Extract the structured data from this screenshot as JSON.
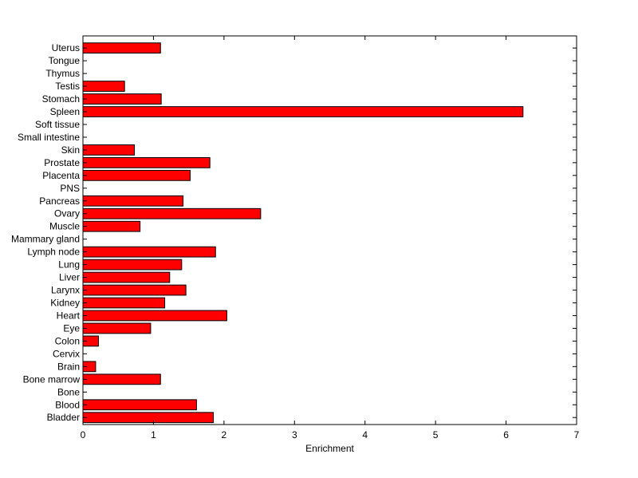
{
  "chart_data": {
    "type": "bar",
    "orientation": "horizontal",
    "title": "",
    "xlabel": "Enrichment",
    "ylabel": "",
    "xlim": [
      0,
      7
    ],
    "xticks": [
      0,
      1,
      2,
      3,
      4,
      5,
      6,
      7
    ],
    "grid": false,
    "bar_color": "#ff0000",
    "bar_edge_color": "#000000",
    "categories": [
      "Uterus",
      "Tongue",
      "Thymus",
      "Testis",
      "Stomach",
      "Spleen",
      "Soft tissue",
      "Small intestine",
      "Skin",
      "Prostate",
      "Placenta",
      "PNS",
      "Pancreas",
      "Ovary",
      "Muscle",
      "Mammary gland",
      "Lymph node",
      "Lung",
      "Liver",
      "Larynx",
      "Kidney",
      "Heart",
      "Eye",
      "Colon",
      "Cervix",
      "Brain",
      "Bone marrow",
      "Bone",
      "Blood",
      "Bladder"
    ],
    "values": [
      1.1,
      0,
      0,
      0.59,
      1.11,
      6.24,
      0,
      0,
      0.73,
      1.8,
      1.52,
      0,
      1.42,
      2.52,
      0.81,
      0,
      1.88,
      1.4,
      1.23,
      1.46,
      1.16,
      2.04,
      0.96,
      0.22,
      0,
      0.18,
      1.1,
      0,
      1.61,
      1.85
    ]
  }
}
